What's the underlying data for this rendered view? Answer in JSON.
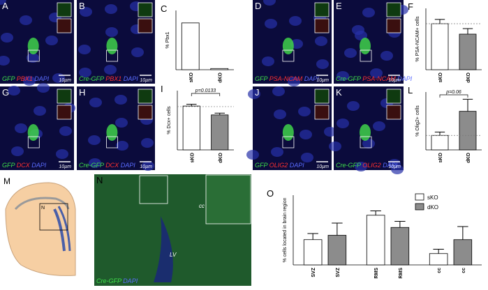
{
  "panels": [
    {
      "letter": "A",
      "stain": [
        "GFP",
        "PBX1",
        "DAPI"
      ],
      "scale": "10µm"
    },
    {
      "letter": "B",
      "stain": [
        "Cre-GFP",
        "PBX1",
        "DAPI"
      ],
      "scale": "10µm"
    },
    {
      "letter": "D",
      "stain": [
        "GFP",
        "PSA-NCAM",
        "DAPI"
      ],
      "scale": "10µm"
    },
    {
      "letter": "E",
      "stain": [
        "Cre-GFP",
        "PSA-NCAM",
        "DAPI"
      ],
      "scale": "10µm"
    },
    {
      "letter": "G",
      "stain": [
        "GFP",
        "DCX",
        "DAPI"
      ],
      "scale": "10µm"
    },
    {
      "letter": "H",
      "stain": [
        "Cre-GFP",
        "DCX",
        "DAPI"
      ],
      "scale": "10µm"
    },
    {
      "letter": "J",
      "stain": [
        "GFP",
        "OLIG2",
        "DAPI"
      ],
      "scale": "10µm"
    },
    {
      "letter": "K",
      "stain": [
        "Cre-GFP",
        "OLIG2",
        "DAPI"
      ],
      "scale": "10µm"
    },
    {
      "letter": "N",
      "stain": [
        "Cre-GFP",
        "DAPI"
      ],
      "annotations": [
        "cc",
        "LV"
      ]
    }
  ],
  "schematic": {
    "letter": "M",
    "inset": "N"
  },
  "chart_data": [
    {
      "type": "bar",
      "panel_label": "C",
      "ylabel": "% Pbx1",
      "categories": [
        "sKO",
        "dKO"
      ],
      "values": [
        79,
        2
      ],
      "colors": [
        "#ffffff",
        "#ffffff"
      ],
      "ylim": [
        0,
        100
      ]
    },
    {
      "type": "bar",
      "panel_label": "F",
      "ylabel": "% PSA-NCAM+ cells",
      "categories": [
        "sKO",
        "dKO"
      ],
      "values": [
        75,
        58
      ],
      "errors": [
        7,
        9
      ],
      "colors": [
        "#ffffff",
        "#8c8c8c"
      ],
      "reference_line": 75,
      "ylim": [
        0,
        100
      ]
    },
    {
      "type": "bar",
      "panel_label": "I",
      "ylabel": "% Dcx+ cells",
      "categories": [
        "sKO",
        "dKO"
      ],
      "values": [
        74,
        59
      ],
      "errors": [
        3,
        3
      ],
      "colors": [
        "#ffffff",
        "#8c8c8c"
      ],
      "reference_line": 73,
      "annotation": "p=0.0133",
      "ylim": [
        0,
        100
      ]
    },
    {
      "type": "bar",
      "panel_label": "L",
      "ylabel": "% Olig2+ cells",
      "categories": [
        "sKO",
        "dKO"
      ],
      "values": [
        3,
        8
      ],
      "errors": [
        0.7,
        2.5
      ],
      "colors": [
        "#ffffff",
        "#8c8c8c"
      ],
      "reference_line": 3,
      "annotation": "p=0.06",
      "ylim": [
        0,
        12
      ]
    },
    {
      "type": "grouped-bar",
      "panel_label": "O",
      "ylabel": "% cells located in brain region",
      "categories": [
        "SVZ",
        "RMS",
        "cc"
      ],
      "series": [
        {
          "name": "sKO",
          "color": "#ffffff",
          "values": [
            29,
            57,
            13
          ],
          "errors": [
            7,
            5,
            5
          ]
        },
        {
          "name": "dKO",
          "color": "#8c8c8c",
          "values": [
            34,
            43,
            29
          ],
          "errors": [
            14,
            7,
            15
          ]
        }
      ],
      "ylim": [
        0,
        80
      ]
    }
  ]
}
